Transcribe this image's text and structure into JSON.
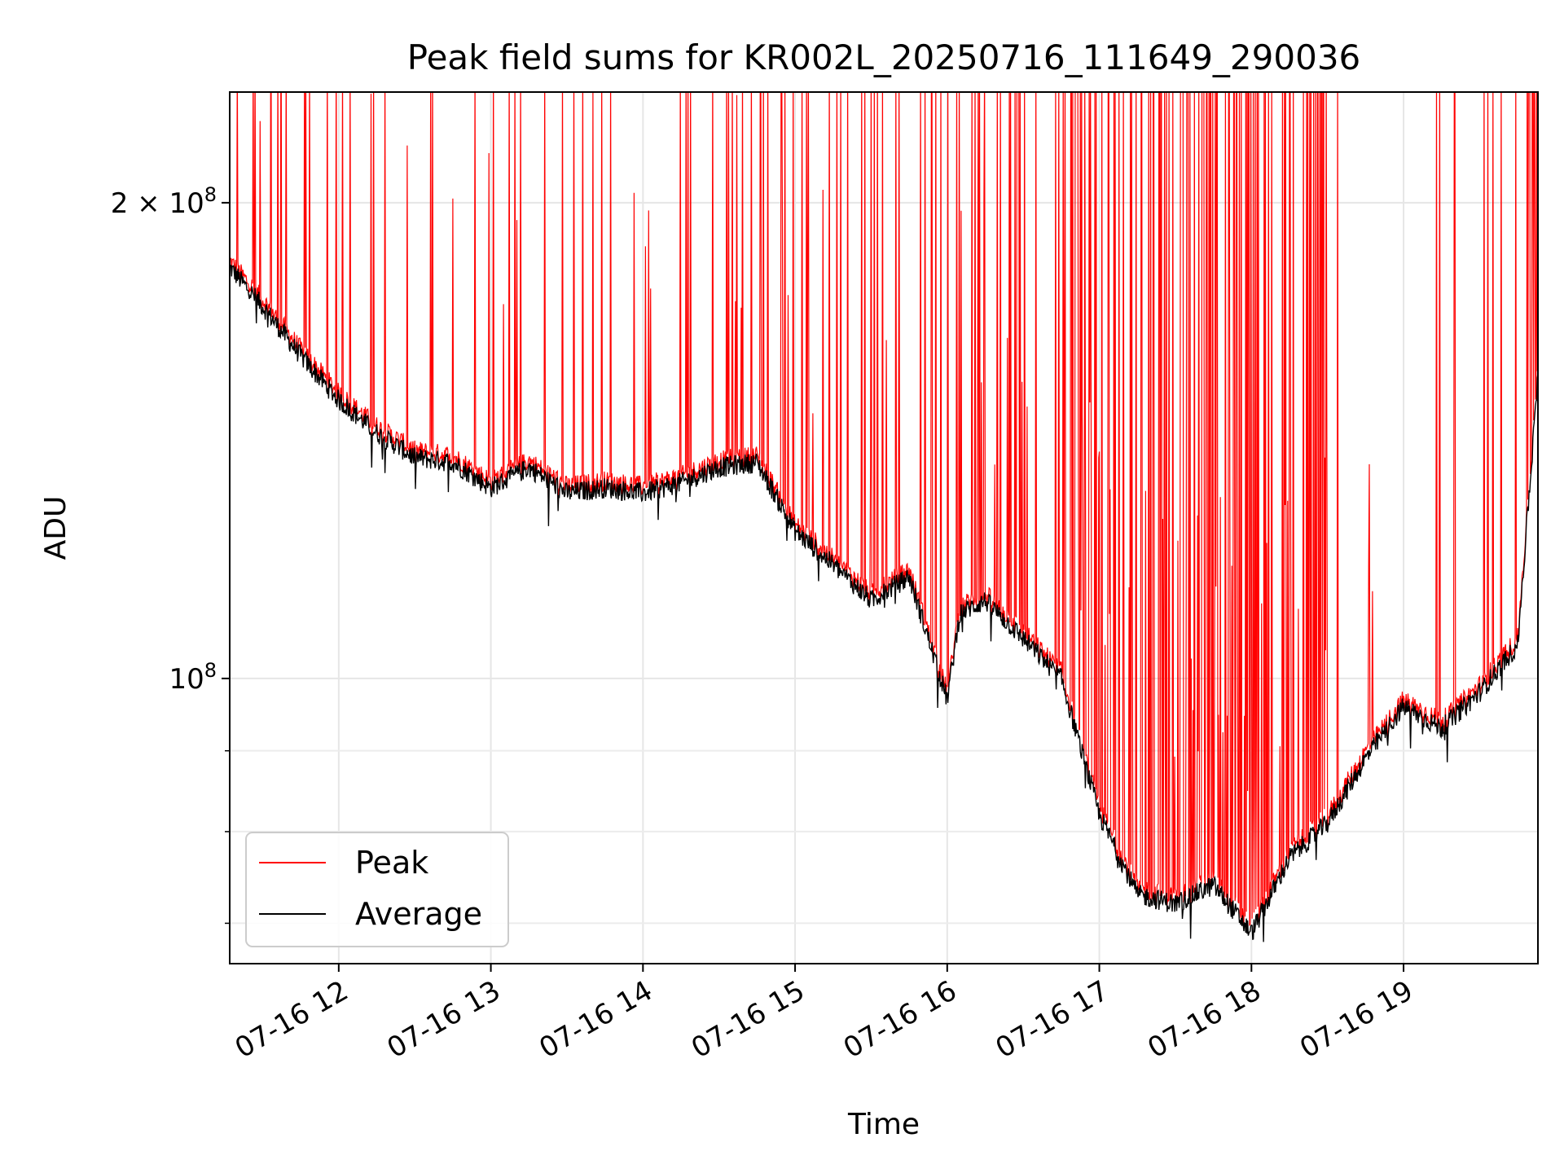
{
  "chart_data": {
    "type": "line",
    "title": "Peak field sums for KR002L_20250716_111649_290036",
    "xlabel": "Time",
    "ylabel": "ADU",
    "yscale": "log",
    "ylim": [
      66000000,
      235000000
    ],
    "xlim": [
      "2025-07-16 11:17",
      "2025-07-16 19:53"
    ],
    "x_ticks": [
      "07-16 12",
      "07-16 13",
      "07-16 14",
      "07-16 15",
      "07-16 16",
      "07-16 17",
      "07-16 18",
      "07-16 19"
    ],
    "y_ticks": [
      {
        "value": 100000000,
        "base": "10",
        "exp": "8"
      },
      {
        "value": 200000000,
        "base": "2 × 10",
        "exp": "8"
      }
    ],
    "y_minor_ticks": [
      70000000,
      80000000,
      90000000
    ],
    "grid": true,
    "legend": "lower-left",
    "colors": {
      "peak": "#ff0000",
      "average": "#000000"
    },
    "series": [
      {
        "name": "Average",
        "color": "#000000",
        "points": [
          [
            "11:17",
            182000000
          ],
          [
            "11:30",
            172000000
          ],
          [
            "11:45",
            160000000
          ],
          [
            "12:00",
            150000000
          ],
          [
            "12:15",
            143000000
          ],
          [
            "12:30",
            138000000
          ],
          [
            "12:45",
            137000000
          ],
          [
            "13:00",
            132000000
          ],
          [
            "13:15",
            136000000
          ],
          [
            "13:30",
            131000000
          ],
          [
            "13:45",
            132000000
          ],
          [
            "14:00",
            131000000
          ],
          [
            "14:15",
            133000000
          ],
          [
            "14:30",
            136000000
          ],
          [
            "14:45",
            137000000
          ],
          [
            "15:00",
            124000000
          ],
          [
            "15:15",
            118000000
          ],
          [
            "15:30",
            112000000
          ],
          [
            "15:45",
            116000000
          ],
          [
            "16:00",
            97000000
          ],
          [
            "16:05",
            110000000
          ],
          [
            "16:15",
            112000000
          ],
          [
            "16:30",
            106000000
          ],
          [
            "16:45",
            100000000
          ],
          [
            "17:00",
            82000000
          ],
          [
            "17:15",
            73000000
          ],
          [
            "17:30",
            72000000
          ],
          [
            "17:45",
            74000000
          ],
          [
            "18:00",
            69000000
          ],
          [
            "18:15",
            77000000
          ],
          [
            "18:30",
            81000000
          ],
          [
            "18:45",
            89000000
          ],
          [
            "19:00",
            96000000
          ],
          [
            "19:15",
            93000000
          ],
          [
            "19:30",
            98000000
          ],
          [
            "19:45",
            105000000
          ],
          [
            "19:53",
            155000000
          ]
        ]
      },
      {
        "name": "Peak",
        "color": "#ff0000",
        "spikes": [
          [
            "11:30",
            230000000
          ],
          [
            "11:45",
            230000000
          ],
          [
            "12:30",
            230000000
          ],
          [
            "12:45",
            230000000
          ],
          [
            "13:15",
            230000000
          ],
          [
            "13:45",
            230000000
          ],
          [
            "14:15",
            230000000
          ],
          [
            "14:45",
            230000000
          ],
          [
            "15:15",
            230000000
          ],
          [
            "15:45",
            230000000
          ],
          [
            "16:15",
            230000000
          ],
          [
            "17:00",
            230000000
          ],
          [
            "17:30",
            230000000
          ],
          [
            "18:00",
            230000000
          ],
          [
            "18:30",
            230000000
          ],
          [
            "19:00",
            230000000
          ],
          [
            "19:53",
            230000000
          ]
        ]
      }
    ]
  }
}
